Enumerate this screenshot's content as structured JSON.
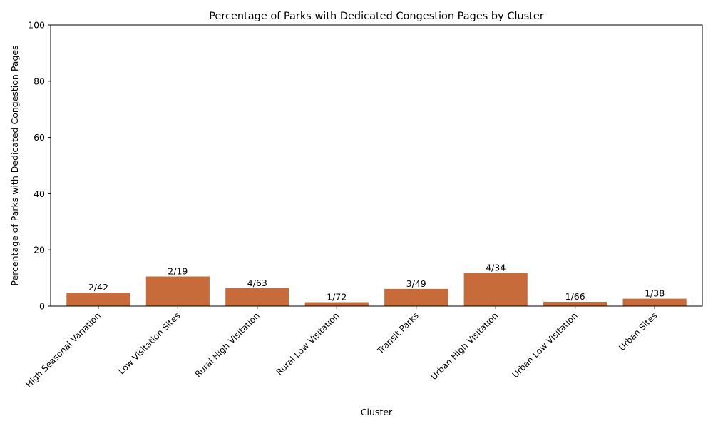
{
  "chart_data": {
    "type": "bar",
    "title": "Percentage of Parks with Dedicated Congestion Pages by Cluster",
    "xlabel": "Cluster",
    "ylabel": "Percentage of Parks with Dedicated Congestion Pages",
    "ylim": [
      0,
      100
    ],
    "yticks": [
      0,
      20,
      40,
      60,
      80,
      100
    ],
    "grid": false,
    "bar_color": "#c86b3a",
    "categories": [
      "High Seasonal Variation",
      "Low Visitation Sites",
      "Rural High Visitation",
      "Rural Low Visitation",
      "Transit Parks",
      "Urban High Visitation",
      "Urban Low Visitation",
      "Urban Sites"
    ],
    "values": [
      4.76,
      10.53,
      6.35,
      1.39,
      6.12,
      11.76,
      1.52,
      2.63
    ],
    "data_labels": [
      "2/42",
      "2/19",
      "4/63",
      "1/72",
      "3/49",
      "4/34",
      "1/66",
      "1/38"
    ]
  }
}
